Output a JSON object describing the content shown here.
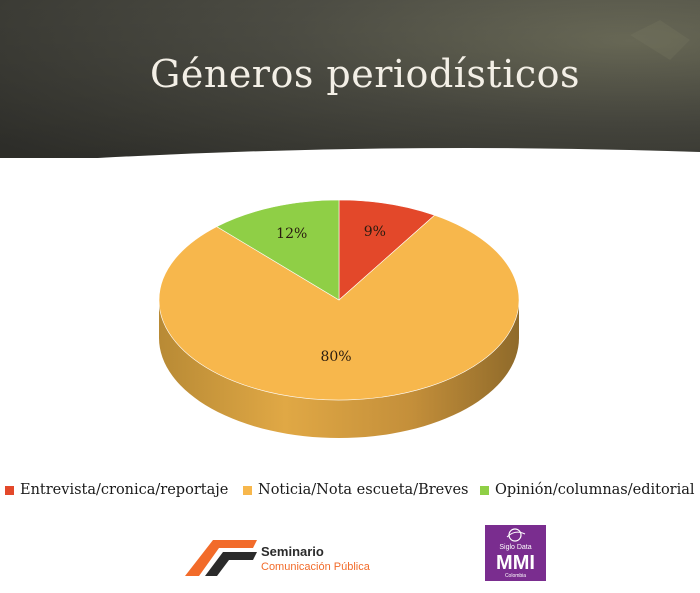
{
  "title": "Géneros periodísticos",
  "colors": {
    "header_dark": "#3a3a33",
    "header_light": "#6b6b5f",
    "entrevista": "#e3482a",
    "noticia": "#f7b74c",
    "opinion": "#8fcf46"
  },
  "chart_data": {
    "type": "pie",
    "style": "3d",
    "labels": [
      "Entrevista/cronica/reportaje",
      "Noticia/Nota escueta/Breves",
      "Opinión/columnas/editorial"
    ],
    "values": [
      9,
      80,
      12
    ],
    "data_labels": [
      "9%",
      "80%",
      "12%"
    ],
    "legend_position": "bottom"
  },
  "logos": {
    "seminario": {
      "line1": "Seminario",
      "line2": "Comunicación Pública"
    },
    "mmi": {
      "top": "Siglo Data",
      "main": "MMI",
      "bottom": "Colombia"
    }
  }
}
